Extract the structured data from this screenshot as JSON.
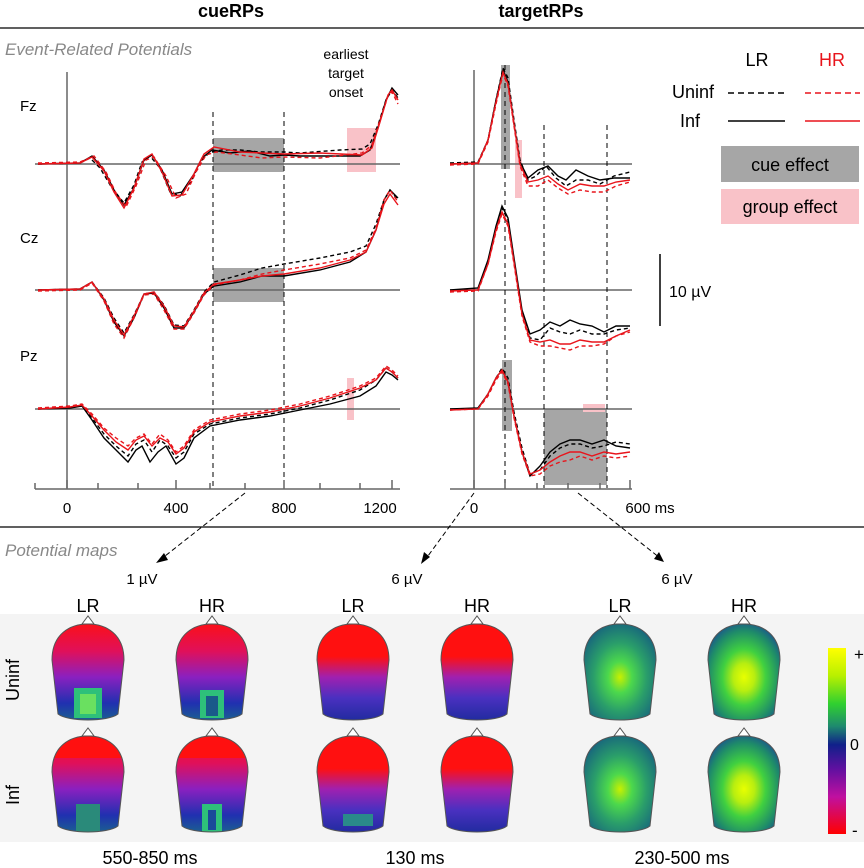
{
  "titles": {
    "cue": "cueRPs",
    "target": "targetRPs"
  },
  "section_erp": "Event-Related Potentials",
  "section_maps": "Potential maps",
  "earliest_target": [
    "earliest",
    "target",
    "onset"
  ],
  "electrodes": [
    "Fz",
    "Cz",
    "Pz"
  ],
  "cue_ticks": [
    "0",
    "400",
    "800",
    "1200"
  ],
  "target_ticks": [
    "0",
    "600 ms"
  ],
  "scale_label": "10 µV",
  "legend": {
    "lr": "LR",
    "hr": "HR",
    "uninf": "Uninf",
    "inf": "Inf",
    "cue_effect": "cue effect",
    "group_effect": "group effect",
    "lr_color": "#000000",
    "hr_color": "#e8141b",
    "cue_effect_color": "#a6a6a6",
    "group_effect_color": "#f9c2c8"
  },
  "map_scales": [
    "1 µV",
    "6 µV",
    "6 µV"
  ],
  "map_groups": [
    "LR",
    "HR",
    "LR",
    "HR",
    "LR",
    "HR"
  ],
  "map_rows": [
    "Uninf",
    "Inf"
  ],
  "map_windows": [
    "550-850 ms",
    "130 ms",
    "230-500 ms"
  ],
  "colorbar": {
    "top": "+",
    "mid": "0",
    "bottom": "-"
  },
  "chart_data": {
    "type": "line",
    "note_series": [
      "LR Uninf (black dashed)",
      "LR Inf (black solid)",
      "HR Uninf (red dashed)",
      "HR Inf (red solid)"
    ],
    "cue_xlim": [
      -100,
      1250
    ],
    "target_xlim": [
      -100,
      600
    ],
    "scale_uv": 10
  }
}
